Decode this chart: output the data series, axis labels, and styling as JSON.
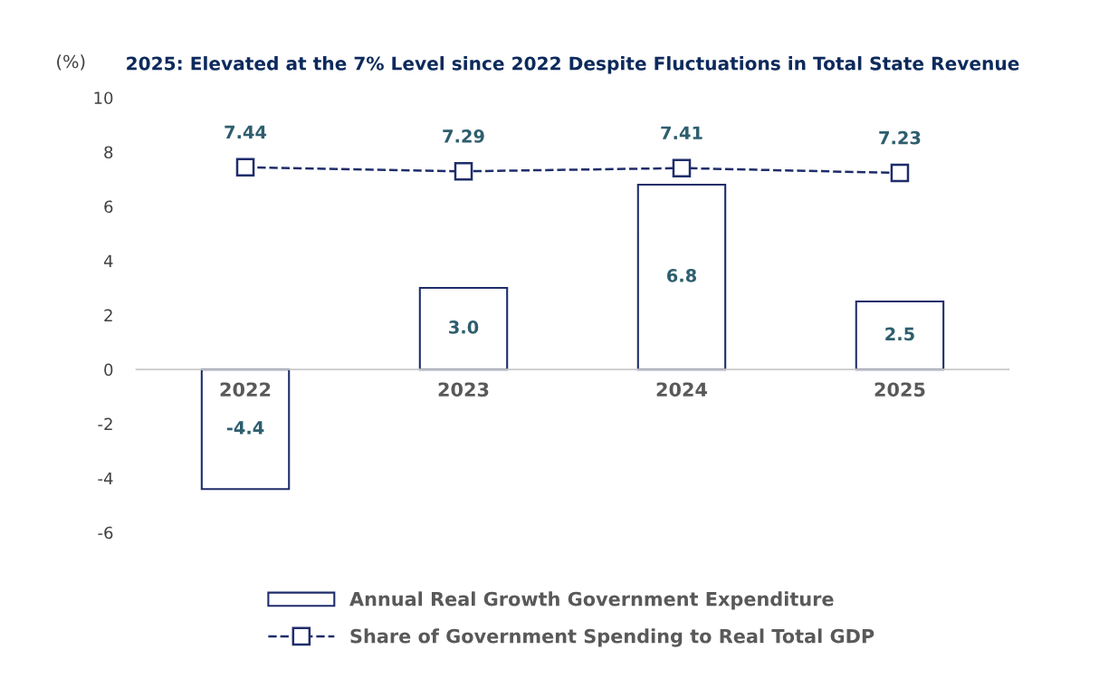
{
  "chart_data": {
    "type": "bar",
    "title": "2025: Elevated at the 7% Level since 2022 Despite Fluctuations in Total State Revenue",
    "ylabel": "(%)",
    "categories": [
      "2022",
      "2023",
      "2024",
      "2025"
    ],
    "series": [
      {
        "name": "Annual Real Growth Government Expenditure",
        "color": "#1f2d6b",
        "values": [
          -4.4,
          3.0,
          6.8,
          2.5
        ],
        "value_labels": [
          "-4.4",
          "3.0",
          "6.8",
          "2.5"
        ]
      },
      {
        "name": "Share of Government Spending to Real Total GDP",
        "type": "line",
        "color": "#1f2d6b",
        "values": [
          7.44,
          7.29,
          7.41,
          7.23
        ],
        "value_labels": [
          "7.44",
          "7.29",
          "7.41",
          "7.23"
        ],
        "marker": "square",
        "line_style": "dashed"
      }
    ],
    "ylim": [
      -6,
      10
    ],
    "yticks": [
      -6,
      -4,
      -2,
      0,
      2,
      4,
      6,
      8,
      10
    ],
    "grid": false,
    "legend": "bottom"
  }
}
